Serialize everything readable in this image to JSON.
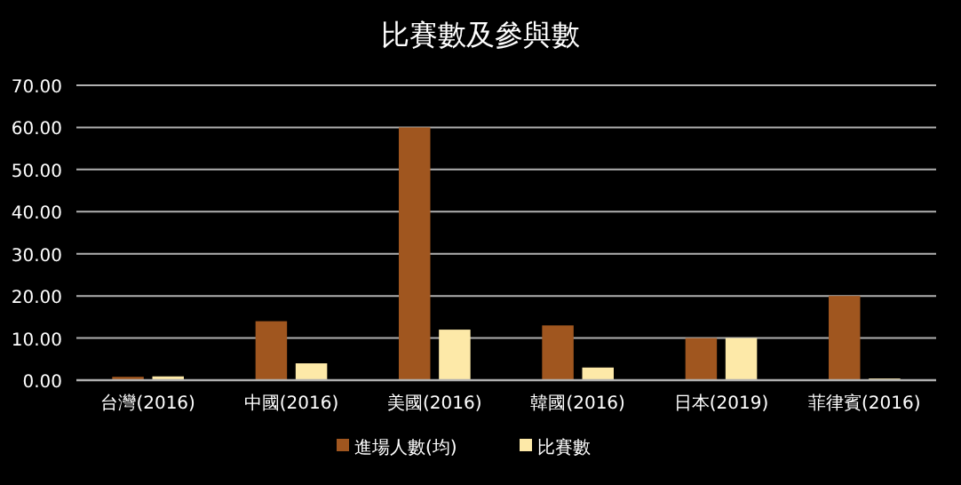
{
  "chart_data": {
    "type": "bar",
    "title": "比賽數及參與數",
    "categories": [
      "台灣(2016)",
      "中國(2016)",
      "美國(2016)",
      "韓國(2016)",
      "日本(2019)",
      "菲律賓(2016)"
    ],
    "series": [
      {
        "name": "進場人數(均)",
        "color": "#a0561f",
        "values": [
          0.8,
          14,
          60,
          13,
          10,
          20
        ]
      },
      {
        "name": "比賽數",
        "color": "#fde9a8",
        "values": [
          0.9,
          4,
          12,
          3,
          10,
          0.4
        ]
      }
    ],
    "ylim": [
      0,
      70
    ],
    "yticks": [
      {
        "value": 0,
        "label": "0.00"
      },
      {
        "value": 10,
        "label": "10.00"
      },
      {
        "value": 20,
        "label": "20.00"
      },
      {
        "value": 30,
        "label": "30.00"
      },
      {
        "value": 40,
        "label": "40.00"
      },
      {
        "value": 50,
        "label": "50.00"
      },
      {
        "value": 60,
        "label": "60.00"
      },
      {
        "value": 70,
        "label": "70.00"
      }
    ],
    "grid": "y",
    "legend": "bottom"
  }
}
